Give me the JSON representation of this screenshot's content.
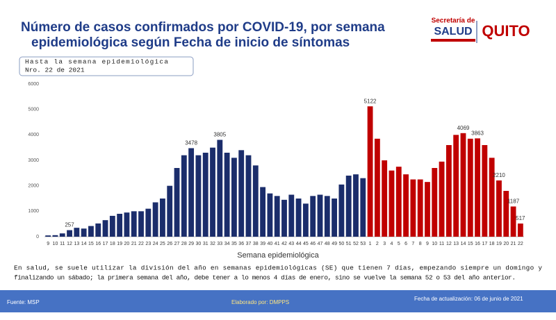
{
  "chart_data": {
    "type": "bar",
    "title_lines": [
      "Número de casos confirmados por COVID-19, por semana",
      "epidemiológica según Fecha de inicio de síntomas"
    ],
    "note_lines": [
      "Hasta la semana epidemiológica",
      "Nro. 22 de 2021"
    ],
    "x_label": "Semana epidemiológica",
    "categories": [
      "9",
      "10",
      "11",
      "12",
      "13",
      "14",
      "15",
      "16",
      "17",
      "18",
      "19",
      "20",
      "21",
      "22",
      "23",
      "24",
      "25",
      "26",
      "27",
      "28",
      "29",
      "30",
      "31",
      "32",
      "33",
      "34",
      "35",
      "36",
      "37",
      "38",
      "39",
      "40",
      "41",
      "42",
      "43",
      "44",
      "45",
      "46",
      "47",
      "48",
      "49",
      "50",
      "51",
      "52",
      "53",
      "1",
      "2",
      "3",
      "4",
      "5",
      "6",
      "7",
      "8",
      "9",
      "10",
      "11",
      "12",
      "13",
      "14",
      "15",
      "16",
      "17",
      "18",
      "19",
      "20",
      "21",
      "22"
    ],
    "series": [
      {
        "color": "#1b2d6b",
        "values": [
          50,
          60,
          130,
          257,
          350,
          320,
          420,
          520,
          650,
          820,
          900,
          950,
          1000,
          1000,
          1100,
          1350,
          1500,
          2000,
          2700,
          3200,
          3478,
          3200,
          3300,
          3500,
          3805,
          3300,
          3100,
          3400,
          3200,
          2800,
          1950,
          1700,
          1600,
          1450,
          1650,
          1500,
          1300,
          1600,
          1650,
          1600,
          1500,
          2050,
          2400,
          2450,
          2300,
          null,
          null,
          null,
          null,
          null,
          null,
          null,
          null,
          null,
          null,
          null,
          null,
          null,
          null,
          null,
          null,
          null,
          null,
          null,
          null,
          null,
          null
        ],
        "value_labels": [
          null,
          null,
          null,
          "257",
          null,
          null,
          null,
          null,
          null,
          null,
          null,
          null,
          null,
          null,
          null,
          null,
          null,
          null,
          null,
          null,
          "3478",
          null,
          null,
          null,
          "3805",
          null,
          null,
          null,
          null,
          null,
          null,
          null,
          null,
          null,
          null,
          null,
          null,
          null,
          null,
          null,
          null,
          null,
          null,
          null,
          null,
          null,
          null,
          null,
          null,
          null,
          null,
          null,
          null,
          null,
          null,
          null,
          null,
          null,
          null,
          null,
          null,
          null,
          null,
          null,
          null,
          null,
          null
        ]
      },
      {
        "color": "#c00000",
        "values": [
          null,
          null,
          null,
          null,
          null,
          null,
          null,
          null,
          null,
          null,
          null,
          null,
          null,
          null,
          null,
          null,
          null,
          null,
          null,
          null,
          null,
          null,
          null,
          null,
          null,
          null,
          null,
          null,
          null,
          null,
          null,
          null,
          null,
          null,
          null,
          null,
          null,
          null,
          null,
          null,
          null,
          null,
          null,
          null,
          null,
          5122,
          3850,
          3000,
          2600,
          2750,
          2450,
          2250,
          2250,
          2150,
          2700,
          2950,
          3600,
          4000,
          4069,
          3850,
          3863,
          3600,
          3100,
          2210,
          1800,
          1187,
          517
        ],
        "value_labels": [
          null,
          null,
          null,
          null,
          null,
          null,
          null,
          null,
          null,
          null,
          null,
          null,
          null,
          null,
          null,
          null,
          null,
          null,
          null,
          null,
          null,
          null,
          null,
          null,
          null,
          null,
          null,
          null,
          null,
          null,
          null,
          null,
          null,
          null,
          null,
          null,
          null,
          null,
          null,
          null,
          null,
          null,
          null,
          null,
          null,
          "5122",
          null,
          null,
          null,
          null,
          null,
          null,
          null,
          null,
          null,
          null,
          null,
          null,
          "4069",
          null,
          "3863",
          null,
          null,
          "2210",
          null,
          "1187",
          "517"
        ]
      }
    ],
    "ylim": [
      0,
      6000
    ],
    "yticks": [
      0,
      1000,
      2000,
      3000,
      4000,
      5000,
      6000
    ],
    "grid": false,
    "footnote_lines": [
      "En salud, se suele utilizar la división del año en semanas epidemiológicas (SE) que tienen 7 días, empezando siempre un domingo y",
      "finalizando un sábado; la primera semana del año, debe tener a lo menos 4 días de enero, sino se vuelve la semana 52 o 53 del año anterior."
    ]
  },
  "logos": {
    "salud_top": "Secretaría de",
    "salud": "SALUD",
    "quito": "QUITO"
  },
  "footer": {
    "source": "Fuente: MSP",
    "author": "Elaborado por: DMPPS",
    "updated": "Fecha de actualización: 06 de junio de 2021"
  }
}
